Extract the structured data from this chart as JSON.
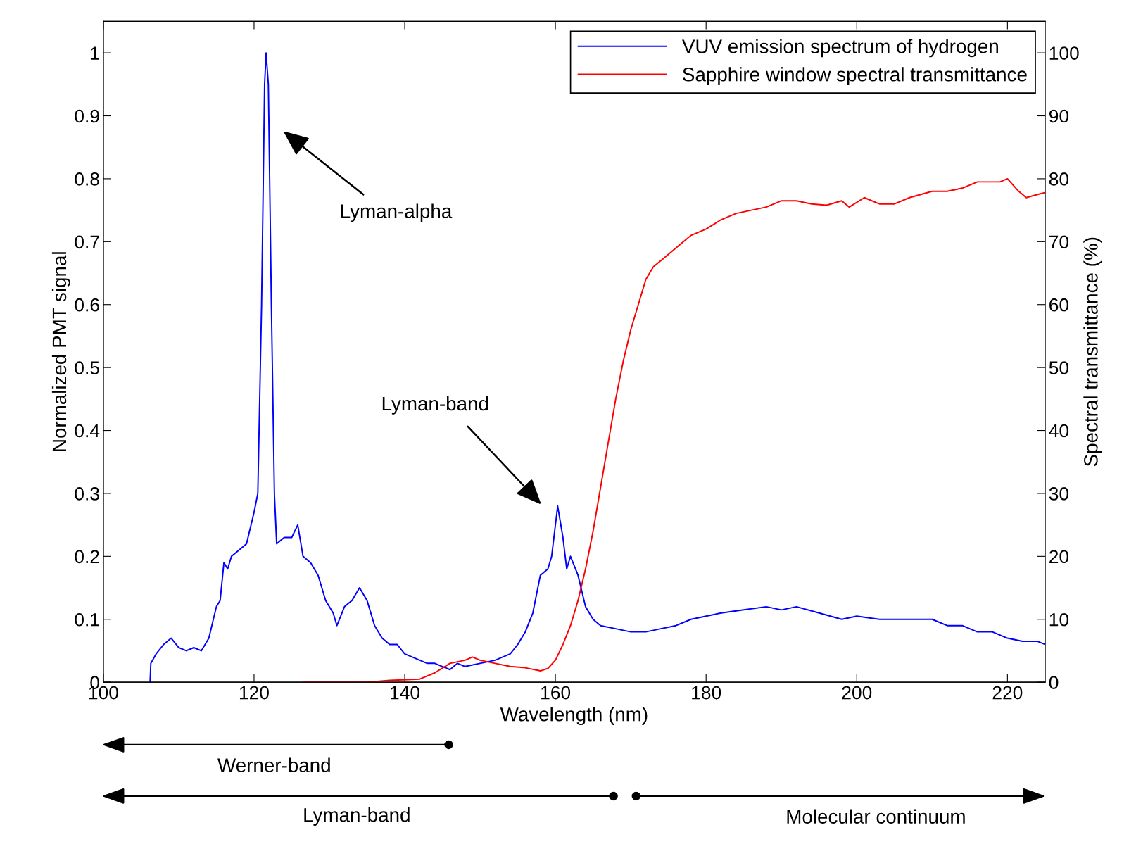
{
  "chart_data": {
    "type": "line",
    "xlabel": "Wavelength (nm)",
    "ylabel": "Normalized PMT signal",
    "y2label": "Spectral transmittance (%)",
    "xlim": [
      100,
      225
    ],
    "xticks": [
      100,
      120,
      140,
      160,
      180,
      200,
      220
    ],
    "ylim": [
      0,
      1.05
    ],
    "yticks": [
      0,
      0.1,
      0.2,
      0.3,
      0.4,
      0.5,
      0.6,
      0.7,
      0.8,
      0.9,
      1
    ],
    "y2lim": [
      0,
      105
    ],
    "y2ticks": [
      0,
      10,
      20,
      30,
      40,
      50,
      60,
      70,
      80,
      90,
      100
    ],
    "grid": false,
    "legend": "top right",
    "marker": "none",
    "line_style": "solid",
    "series": [
      {
        "name": "VUV emission spectrum of hydrogen",
        "color": "#0000ff",
        "x": [
          106.2,
          106.3,
          107,
          108,
          109,
          110,
          111,
          112,
          113,
          114,
          115,
          115.5,
          116,
          116.5,
          117,
          118,
          119,
          120,
          120.5,
          121,
          121.4,
          121.6,
          121.9,
          122.3,
          122.7,
          123,
          124,
          125,
          125.8,
          126.5,
          127.5,
          128.5,
          129.5,
          130.5,
          131,
          132,
          133,
          134,
          135,
          136,
          137,
          138,
          139,
          140,
          141,
          142,
          143,
          144,
          145,
          146,
          147,
          148,
          150,
          152,
          154,
          155,
          156,
          157,
          158,
          159,
          159.5,
          160.3,
          161,
          161.5,
          162,
          163,
          164,
          165,
          166,
          168,
          170,
          172,
          174,
          176,
          178,
          180,
          182,
          185,
          188,
          190,
          192,
          195,
          198,
          200,
          203,
          206,
          210,
          212,
          214,
          216,
          218,
          220,
          222,
          224,
          225
        ],
        "values": [
          0,
          0.03,
          0.045,
          0.06,
          0.07,
          0.055,
          0.05,
          0.055,
          0.05,
          0.07,
          0.12,
          0.13,
          0.19,
          0.18,
          0.2,
          0.21,
          0.22,
          0.27,
          0.3,
          0.6,
          0.95,
          1.0,
          0.95,
          0.6,
          0.3,
          0.22,
          0.23,
          0.23,
          0.25,
          0.2,
          0.19,
          0.17,
          0.13,
          0.11,
          0.09,
          0.12,
          0.13,
          0.15,
          0.13,
          0.09,
          0.07,
          0.06,
          0.06,
          0.045,
          0.04,
          0.035,
          0.03,
          0.03,
          0.025,
          0.02,
          0.03,
          0.025,
          0.03,
          0.035,
          0.045,
          0.06,
          0.08,
          0.11,
          0.17,
          0.18,
          0.2,
          0.28,
          0.23,
          0.18,
          0.2,
          0.17,
          0.12,
          0.1,
          0.09,
          0.085,
          0.08,
          0.08,
          0.085,
          0.09,
          0.1,
          0.105,
          0.11,
          0.115,
          0.12,
          0.115,
          0.12,
          0.11,
          0.1,
          0.105,
          0.1,
          0.1,
          0.1,
          0.09,
          0.09,
          0.08,
          0.08,
          0.07,
          0.065,
          0.065,
          0.06
        ]
      },
      {
        "name": "Sapphire window spectral transmittance",
        "color": "#ff0000",
        "axis": "y2",
        "x": [
          126.5,
          135,
          138,
          142,
          144,
          146,
          148,
          149,
          150,
          152,
          154,
          156,
          158,
          159,
          160,
          161,
          162,
          163,
          164,
          165,
          166,
          167,
          168,
          169,
          170,
          171,
          172,
          173,
          174,
          175,
          176,
          177,
          178,
          180,
          182,
          184,
          186,
          188,
          190,
          192,
          194,
          196,
          198,
          199,
          201,
          203,
          205,
          207,
          210,
          212,
          214,
          216,
          218,
          219,
          220,
          221.5,
          222.5,
          224,
          225
        ],
        "values": [
          0,
          0,
          0.3,
          0.5,
          1.5,
          3,
          3.5,
          4,
          3.5,
          3,
          2.5,
          2.3,
          1.8,
          2.2,
          3.5,
          6,
          9,
          13,
          18,
          24,
          31,
          38,
          45,
          51,
          56,
          60,
          64,
          66,
          67,
          68,
          69,
          70,
          71,
          72,
          73.5,
          74.5,
          75,
          75.5,
          76.5,
          76.5,
          76,
          75.8,
          76.5,
          75.5,
          77,
          76,
          76,
          77,
          78,
          78,
          78.5,
          79.5,
          79.5,
          79.5,
          80,
          78,
          77,
          77.5,
          77.8
        ]
      }
    ],
    "annotations": [
      "Lyman-alpha",
      "Lyman-band",
      "Werner-band",
      "Lyman-band",
      "Molecular continuum"
    ]
  }
}
